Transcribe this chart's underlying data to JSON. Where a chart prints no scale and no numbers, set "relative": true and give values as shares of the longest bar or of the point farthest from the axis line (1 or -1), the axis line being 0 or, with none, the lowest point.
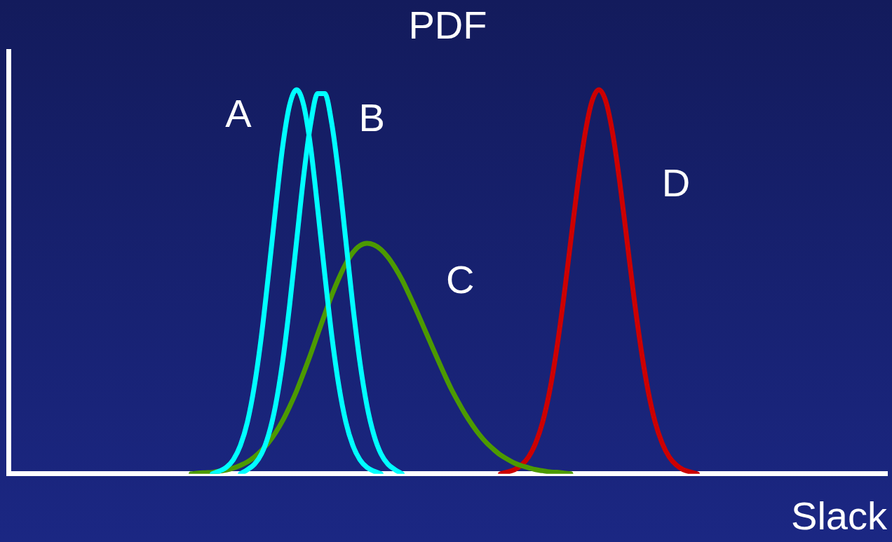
{
  "chart_data": {
    "type": "line",
    "title": "PDF",
    "xlabel": "Slack",
    "relative": true,
    "marker": "none",
    "line_style": "solid",
    "categories": [
      null,
      null,
      null,
      null,
      null,
      null,
      null,
      null,
      null,
      null,
      null,
      null,
      null,
      null,
      null,
      null,
      null,
      null,
      null,
      null,
      null,
      null,
      null,
      null,
      null,
      null,
      null,
      null,
      null,
      null,
      null,
      null,
      null,
      null,
      null,
      null,
      null,
      null,
      null,
      null,
      null,
      null,
      null,
      null,
      null,
      null,
      null,
      null,
      null,
      null,
      null,
      null,
      null,
      null,
      null,
      null,
      null,
      null,
      null,
      null,
      null,
      null,
      null,
      null,
      null,
      null,
      null,
      null,
      null,
      null,
      null,
      null,
      null,
      null,
      null,
      null,
      null,
      null,
      null,
      null,
      null,
      null,
      null,
      null,
      null,
      null,
      null,
      null,
      null,
      null,
      null,
      null,
      null,
      null,
      null,
      null,
      null,
      null,
      null,
      null,
      null,
      null,
      null,
      null,
      null,
      null,
      null,
      null,
      null,
      null,
      null,
      null,
      null,
      null,
      null,
      null,
      null,
      null,
      null,
      null,
      null,
      null,
      null,
      null,
      null,
      null
    ],
    "series": [
      {
        "name": "A",
        "color": "#00ffff",
        "values": [
          null,
          null,
          null,
          null,
          null,
          null,
          null,
          null,
          null,
          null,
          null,
          null,
          null,
          null,
          null,
          null,
          null,
          null,
          null,
          null,
          null,
          null,
          null,
          null,
          null,
          null,
          null,
          null,
          null,
          0,
          0.007,
          0.017,
          0.037,
          0.074,
          0.135,
          0.23,
          0.36,
          0.52,
          0.69,
          0.85,
          0.96,
          1,
          0.96,
          0.85,
          0.69,
          0.52,
          0.36,
          0.23,
          0.135,
          0.074,
          0.037,
          0.017,
          0.007,
          0,
          null,
          null,
          null,
          null,
          null,
          null,
          null,
          null,
          null,
          null,
          null,
          null,
          null,
          null,
          null,
          null,
          null,
          null,
          null,
          null,
          null,
          null,
          null,
          null,
          null,
          null,
          null,
          null,
          null,
          null,
          null,
          null,
          null,
          null,
          null,
          null,
          null,
          null,
          null,
          null,
          null,
          null,
          null,
          null,
          null,
          null,
          null,
          null,
          null,
          null,
          null,
          null,
          null,
          null,
          null,
          null,
          null,
          null,
          null,
          null,
          null,
          null,
          null,
          null,
          null,
          null,
          null,
          null,
          null,
          null,
          null,
          null
        ]
      },
      {
        "name": "B",
        "color": "#00ffff",
        "values": [
          null,
          null,
          null,
          null,
          null,
          null,
          null,
          null,
          null,
          null,
          null,
          null,
          null,
          null,
          null,
          null,
          null,
          null,
          null,
          null,
          null,
          null,
          null,
          null,
          null,
          null,
          null,
          null,
          null,
          null,
          null,
          null,
          null,
          0,
          0.011,
          0.025,
          0.052,
          0.101,
          0.178,
          0.291,
          0.438,
          0.607,
          0.775,
          0.912,
          0.99,
          0.99,
          0.912,
          0.775,
          0.607,
          0.438,
          0.291,
          0.178,
          0.101,
          0.052,
          0.025,
          0.011,
          0,
          null,
          null,
          null,
          null,
          null,
          null,
          null,
          null,
          null,
          null,
          null,
          null,
          null,
          null,
          null,
          null,
          null,
          null,
          null,
          null,
          null,
          null,
          null,
          null,
          null,
          null,
          null,
          null,
          null,
          null,
          null,
          null,
          null,
          null,
          null,
          null,
          null,
          null,
          null,
          null,
          null,
          null,
          null,
          null,
          null,
          null,
          null,
          null,
          null,
          null,
          null,
          null,
          null,
          null,
          null,
          null,
          null,
          null,
          null,
          null,
          null,
          null,
          null,
          null,
          null,
          null,
          null,
          null,
          null
        ]
      },
      {
        "name": "C",
        "color": "#4c9a00",
        "values": [
          null,
          null,
          null,
          null,
          null,
          null,
          null,
          null,
          null,
          null,
          null,
          null,
          null,
          null,
          null,
          null,
          null,
          null,
          null,
          null,
          null,
          null,
          null,
          null,
          null,
          null,
          0,
          0.002,
          0.003,
          0.004,
          0.007,
          0.01,
          0.015,
          0.022,
          0.031,
          0.044,
          0.061,
          0.081,
          0.107,
          0.138,
          0.175,
          0.216,
          0.263,
          0.312,
          0.364,
          0.415,
          0.465,
          0.509,
          0.547,
          0.576,
          0.594,
          0.6,
          0.596,
          0.584,
          0.564,
          0.537,
          0.505,
          0.467,
          0.427,
          0.385,
          0.343,
          0.301,
          0.26,
          0.221,
          0.187,
          0.155,
          0.127,
          0.102,
          0.081,
          0.064,
          0.049,
          0.038,
          0.028,
          0.021,
          0.016,
          0.011,
          0.008,
          0.005,
          0.004,
          0.002,
          0,
          null,
          null,
          null,
          null,
          null,
          null,
          null,
          null,
          null,
          null,
          null,
          null,
          null,
          null,
          null,
          null,
          null,
          null,
          null,
          null,
          null,
          null,
          null,
          null,
          null,
          null,
          null,
          null,
          null,
          null,
          null,
          null,
          null,
          null,
          null,
          null,
          null,
          null,
          null,
          null,
          null,
          null,
          null,
          null,
          null
        ]
      },
      {
        "name": "D",
        "color": "#cc0000",
        "values": [
          null,
          null,
          null,
          null,
          null,
          null,
          null,
          null,
          null,
          null,
          null,
          null,
          null,
          null,
          null,
          null,
          null,
          null,
          null,
          null,
          null,
          null,
          null,
          null,
          null,
          null,
          null,
          null,
          null,
          null,
          null,
          null,
          null,
          null,
          null,
          null,
          null,
          null,
          null,
          null,
          null,
          null,
          null,
          null,
          null,
          null,
          null,
          null,
          null,
          null,
          null,
          null,
          null,
          null,
          null,
          null,
          null,
          null,
          null,
          null,
          null,
          null,
          null,
          null,
          null,
          null,
          null,
          null,
          null,
          null,
          0,
          0.005,
          0.011,
          0.023,
          0.044,
          0.08,
          0.135,
          0.216,
          0.325,
          0.458,
          0.607,
          0.755,
          0.882,
          0.969,
          1,
          0.969,
          0.882,
          0.755,
          0.607,
          0.458,
          0.325,
          0.216,
          0.135,
          0.08,
          0.044,
          0.023,
          0.011,
          0.005,
          0,
          null,
          null,
          null,
          null,
          null,
          null,
          null,
          null,
          null,
          null,
          null,
          null,
          null,
          null,
          null,
          null,
          null,
          null,
          null,
          null,
          null,
          null,
          null,
          null,
          null,
          null,
          null
        ]
      }
    ]
  }
}
